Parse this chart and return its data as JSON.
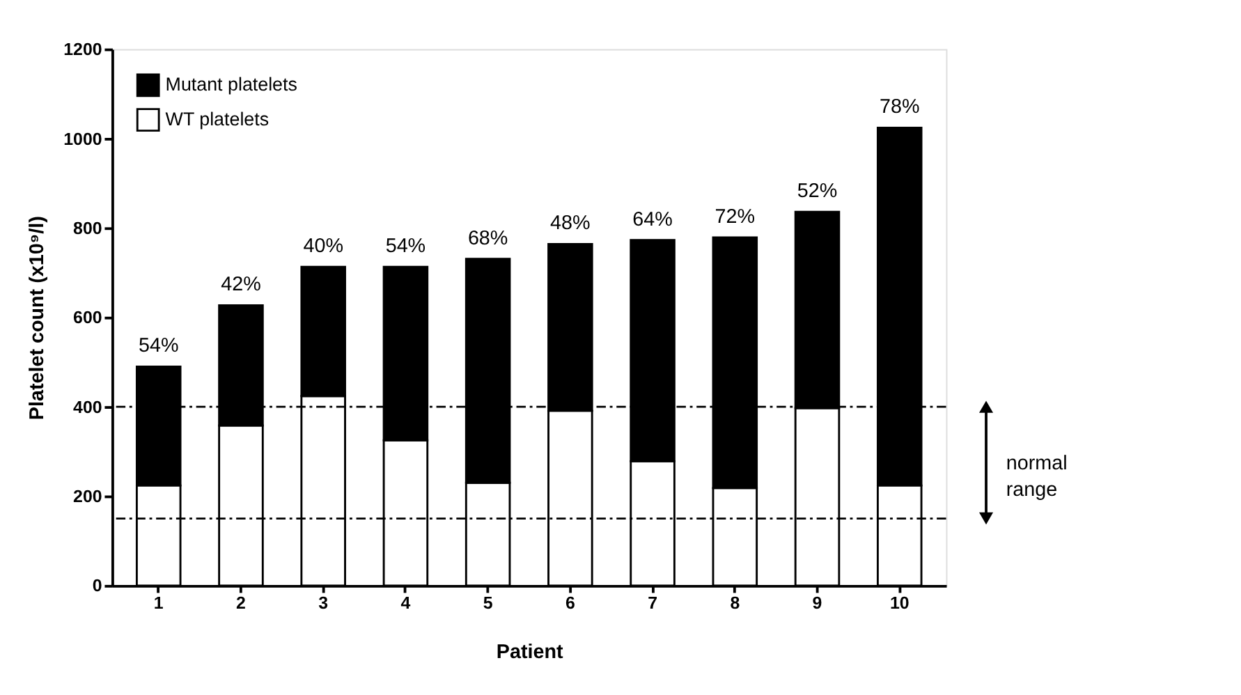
{
  "chart_data": {
    "type": "bar",
    "stacked": true,
    "xlabel": "Patient",
    "ylabel": "Platelet count (x10⁹/l)",
    "categories": [
      "1",
      "2",
      "3",
      "4",
      "5",
      "6",
      "7",
      "8",
      "9",
      "10"
    ],
    "series": [
      {
        "name": "WT platelets",
        "color": "#ffffff",
        "values": [
          224,
          358,
          424,
          325,
          230,
          391,
          278,
          218,
          397,
          224
        ]
      },
      {
        "name": "Mutant platelets",
        "color": "#000000",
        "values": [
          266,
          269,
          289,
          388,
          501,
          373,
          495,
          561,
          439,
          800
        ]
      }
    ],
    "ylim": [
      0,
      1200
    ],
    "yticks": [
      0,
      200,
      400,
      600,
      800,
      1000,
      1200
    ],
    "grid": false,
    "legend": "top left",
    "ref_lines": [
      {
        "axis": "y",
        "value": 400,
        "label": null
      },
      {
        "axis": "y",
        "value": 150,
        "label": null
      }
    ],
    "annotations": [
      {
        "text": "54%",
        "x": "1",
        "y": 490
      },
      {
        "text": "42%",
        "x": "2",
        "y": 627
      },
      {
        "text": "40%",
        "x": "3",
        "y": 713
      },
      {
        "text": "54%",
        "x": "4",
        "y": 713
      },
      {
        "text": "68%",
        "x": "5",
        "y": 731
      },
      {
        "text": "48%",
        "x": "6",
        "y": 764
      },
      {
        "text": "64%",
        "x": "7",
        "y": 773
      },
      {
        "text": "72%",
        "x": "8",
        "y": 779
      },
      {
        "text": "52%",
        "x": "9",
        "y": 836
      },
      {
        "text": "78%",
        "x": "10",
        "y": 1024
      },
      "normal range"
    ]
  }
}
